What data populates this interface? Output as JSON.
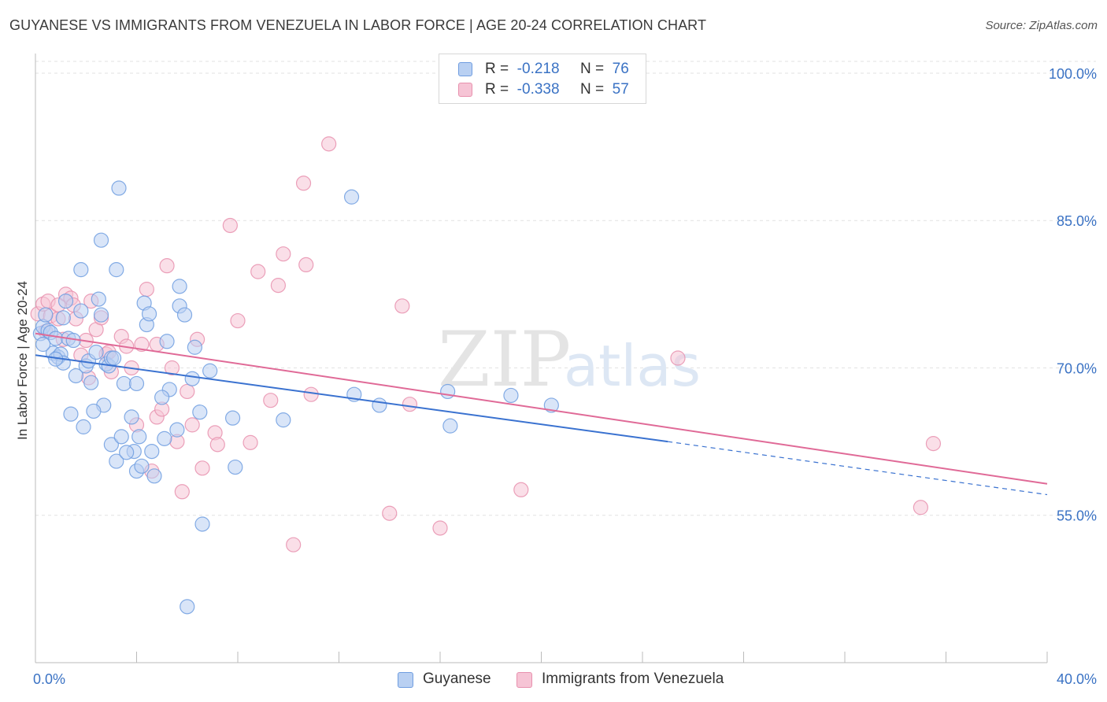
{
  "title": "GUYANESE VS IMMIGRANTS FROM VENEZUELA IN LABOR FORCE | AGE 20-24 CORRELATION CHART",
  "source": "Source: ZipAtlas.com",
  "watermark": {
    "zip": "ZIP",
    "atlas": "atlas"
  },
  "legend_top": [
    {
      "r_label": "R =",
      "r_value": "-0.218",
      "n_label": "N =",
      "n_value": "76"
    },
    {
      "r_label": "R =",
      "r_value": "-0.338",
      "n_label": "N =",
      "n_value": "57"
    }
  ],
  "chart_data": {
    "type": "scatter",
    "title": "GUYANESE VS IMMIGRANTS FROM VENEZUELA IN LABOR FORCE | AGE 20-24 CORRELATION CHART",
    "xlabel": "",
    "ylabel": "In Labor Force | Age 20-24",
    "xlim": [
      0,
      40
    ],
    "ylim": [
      40,
      102
    ],
    "x_tick_labels": [
      "0.0%",
      "40.0%"
    ],
    "y_ticks": [
      55,
      70,
      85,
      100
    ],
    "y_tick_labels": [
      "55.0%",
      "70.0%",
      "85.0%",
      "100.0%"
    ],
    "grid": true,
    "legend_position": "bottom",
    "series": [
      {
        "name": "Guyanese",
        "color": "#6f9de0",
        "fill": "#b9d0f2",
        "R": -0.218,
        "N": 76,
        "trend": {
          "x0": 0,
          "y0": 71.3,
          "x1": 25.0,
          "y1": 62.5,
          "dash_x1": 40,
          "dash_y1": 57.1
        },
        "points": [
          [
            0.2,
            73.5
          ],
          [
            0.3,
            74.2
          ],
          [
            0.4,
            75.4
          ],
          [
            0.5,
            73.8
          ],
          [
            0.6,
            73.6
          ],
          [
            0.7,
            71.5
          ],
          [
            0.8,
            73.0
          ],
          [
            0.9,
            71.1
          ],
          [
            1.0,
            71.4
          ],
          [
            1.1,
            75.1
          ],
          [
            1.1,
            70.5
          ],
          [
            1.3,
            73.0
          ],
          [
            1.4,
            65.3
          ],
          [
            1.5,
            72.8
          ],
          [
            1.6,
            69.2
          ],
          [
            1.8,
            80.0
          ],
          [
            1.8,
            75.8
          ],
          [
            1.9,
            64.0
          ],
          [
            2.0,
            70.2
          ],
          [
            2.1,
            70.7
          ],
          [
            2.2,
            68.5
          ],
          [
            2.4,
            71.6
          ],
          [
            2.5,
            77.0
          ],
          [
            2.6,
            75.4
          ],
          [
            2.6,
            83.0
          ],
          [
            2.7,
            66.2
          ],
          [
            2.8,
            70.4
          ],
          [
            2.9,
            70.2
          ],
          [
            3.0,
            71.0
          ],
          [
            3.0,
            62.2
          ],
          [
            3.1,
            71.0
          ],
          [
            3.2,
            60.5
          ],
          [
            3.2,
            80.0
          ],
          [
            3.3,
            88.3
          ],
          [
            3.4,
            63.0
          ],
          [
            3.5,
            68.4
          ],
          [
            3.8,
            65.0
          ],
          [
            3.9,
            61.5
          ],
          [
            4.0,
            59.5
          ],
          [
            4.0,
            68.4
          ],
          [
            4.1,
            63.0
          ],
          [
            4.2,
            60.0
          ],
          [
            4.3,
            76.6
          ],
          [
            4.4,
            74.4
          ],
          [
            4.5,
            75.5
          ],
          [
            4.6,
            61.5
          ],
          [
            4.7,
            59.0
          ],
          [
            5.1,
            62.8
          ],
          [
            5.2,
            72.7
          ],
          [
            5.3,
            67.8
          ],
          [
            5.6,
            63.7
          ],
          [
            5.7,
            78.3
          ],
          [
            5.7,
            76.3
          ],
          [
            5.9,
            75.4
          ],
          [
            6.2,
            68.9
          ],
          [
            6.3,
            72.1
          ],
          [
            6.5,
            65.5
          ],
          [
            6.6,
            54.1
          ],
          [
            6.9,
            69.7
          ],
          [
            7.8,
            64.9
          ],
          [
            7.9,
            59.9
          ],
          [
            9.8,
            64.7
          ],
          [
            12.5,
            87.4
          ],
          [
            12.6,
            67.3
          ],
          [
            13.6,
            66.2
          ],
          [
            16.3,
            67.6
          ],
          [
            16.4,
            64.1
          ],
          [
            18.8,
            67.2
          ],
          [
            20.4,
            66.2
          ],
          [
            6.0,
            45.7
          ],
          [
            0.3,
            72.4
          ],
          [
            1.2,
            76.8
          ],
          [
            2.3,
            65.6
          ],
          [
            3.6,
            61.4
          ],
          [
            5.0,
            67.0
          ],
          [
            0.8,
            70.9
          ]
        ]
      },
      {
        "name": "Immigrants from Venezuela",
        "color": "#e891ae",
        "fill": "#f6c4d5",
        "R": -0.338,
        "N": 57,
        "trend": {
          "x0": 0,
          "y0": 73.5,
          "x1": 40,
          "y1": 58.2
        },
        "points": [
          [
            0.1,
            75.5
          ],
          [
            0.3,
            76.5
          ],
          [
            0.4,
            73.7
          ],
          [
            0.6,
            75.3
          ],
          [
            0.5,
            76.8
          ],
          [
            0.9,
            75.0
          ],
          [
            0.9,
            76.4
          ],
          [
            1.1,
            72.9
          ],
          [
            1.2,
            77.5
          ],
          [
            1.4,
            77.1
          ],
          [
            1.5,
            76.4
          ],
          [
            1.6,
            75.0
          ],
          [
            1.8,
            71.3
          ],
          [
            2.0,
            72.8
          ],
          [
            2.1,
            69.0
          ],
          [
            2.2,
            76.8
          ],
          [
            2.4,
            73.9
          ],
          [
            2.6,
            75.1
          ],
          [
            2.8,
            71.4
          ],
          [
            2.9,
            71.6
          ],
          [
            3.0,
            69.6
          ],
          [
            3.4,
            73.2
          ],
          [
            3.6,
            72.2
          ],
          [
            3.8,
            70.0
          ],
          [
            4.0,
            64.2
          ],
          [
            4.2,
            72.4
          ],
          [
            4.4,
            78.0
          ],
          [
            4.6,
            59.5
          ],
          [
            4.8,
            72.4
          ],
          [
            4.8,
            65.0
          ],
          [
            5.0,
            65.8
          ],
          [
            5.2,
            80.4
          ],
          [
            5.4,
            70.0
          ],
          [
            5.6,
            62.5
          ],
          [
            5.8,
            57.4
          ],
          [
            6.0,
            67.6
          ],
          [
            6.2,
            64.2
          ],
          [
            6.4,
            72.9
          ],
          [
            6.6,
            59.8
          ],
          [
            7.1,
            63.4
          ],
          [
            7.2,
            62.2
          ],
          [
            7.7,
            84.5
          ],
          [
            8.0,
            74.8
          ],
          [
            8.5,
            62.4
          ],
          [
            8.8,
            79.8
          ],
          [
            9.3,
            66.7
          ],
          [
            9.6,
            78.4
          ],
          [
            9.8,
            81.6
          ],
          [
            10.2,
            52.0
          ],
          [
            10.6,
            88.8
          ],
          [
            10.7,
            80.5
          ],
          [
            10.9,
            67.3
          ],
          [
            11.6,
            92.8
          ],
          [
            14.0,
            55.2
          ],
          [
            14.5,
            76.3
          ],
          [
            14.8,
            66.3
          ],
          [
            19.2,
            57.6
          ]
        ],
        "extra_points": [
          [
            25.4,
            71.0
          ],
          [
            35.0,
            55.8
          ],
          [
            35.5,
            62.3
          ],
          [
            16.0,
            53.7
          ]
        ]
      }
    ]
  }
}
